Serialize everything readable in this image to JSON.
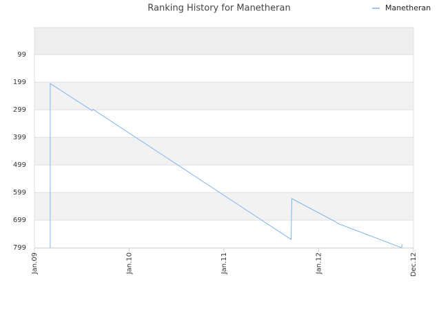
{
  "chart_data": {
    "type": "line",
    "title": "Ranking History for Manetheran",
    "x": [
      2,
      2,
      7.3,
      7.4,
      32.5,
      32.6,
      38.2,
      38.4,
      46.5,
      46.6
    ],
    "series": [
      {
        "name": "Manetheran",
        "color": "#7cb5ec",
        "values": [
          800,
          204,
          302,
          297,
          769,
          621,
          706,
          711,
          799,
          786
        ]
      }
    ],
    "xlim": [
      0,
      48
    ],
    "xticks": [
      {
        "value": 0,
        "label": "Jan.09"
      },
      {
        "value": 12,
        "label": "Jan.10"
      },
      {
        "value": 24,
        "label": "Jan.11"
      },
      {
        "value": 36,
        "label": "Jan.12"
      },
      {
        "value": 48,
        "label": "Dec.12"
      }
    ],
    "ylim": [
      801,
      1
    ],
    "yticks": [
      99,
      199,
      299,
      399,
      499,
      599,
      699,
      799
    ],
    "grid": true,
    "legend": "top-right"
  }
}
